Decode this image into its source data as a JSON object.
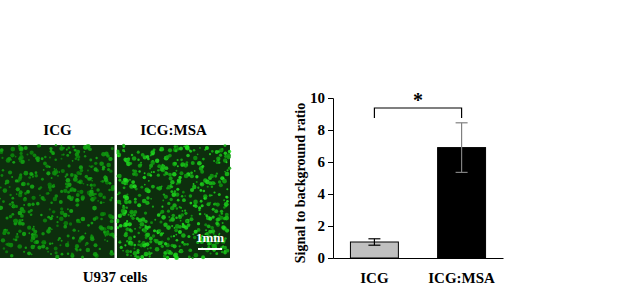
{
  "chart_data": {
    "type": "bar",
    "categories": [
      "ICG",
      "ICG:MSA"
    ],
    "values": [
      1.0,
      6.9
    ],
    "errors": [
      0.2,
      1.55
    ],
    "colors": [
      "#c0c0c0",
      "#000000"
    ],
    "y_label": "Signal to background ratio",
    "ylim": [
      0,
      10
    ],
    "yticks": [
      0,
      2,
      4,
      6,
      8,
      10
    ],
    "annotations": [
      "*"
    ]
  },
  "image_panel": {
    "labels": [
      "ICG",
      "ICG:MSA"
    ],
    "scale_bar": "1mm",
    "caption": "U937 cells"
  }
}
